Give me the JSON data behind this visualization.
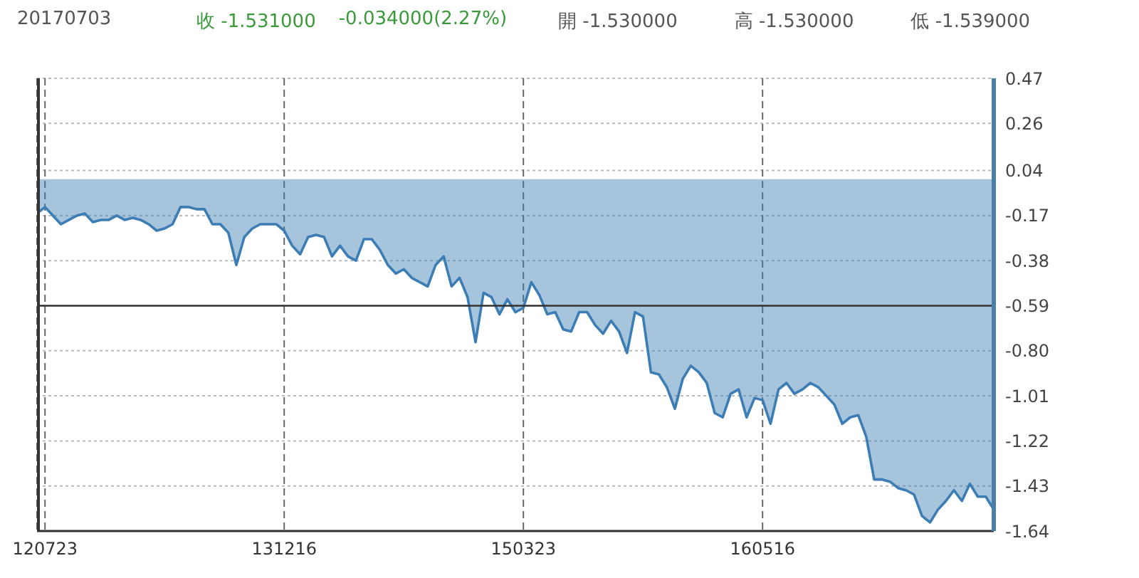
{
  "chart_data": {
    "type": "area",
    "title": "20170703",
    "annotations": [
      "收 -1.531000",
      "-0.034000(2.27%)",
      "開 -1.530000",
      "高 -1.530000",
      "低 -1.539000"
    ],
    "categories": [
      null,
      "120723",
      null,
      null,
      null,
      null,
      null,
      null,
      null,
      null,
      null,
      null,
      null,
      null,
      null,
      null,
      null,
      null,
      null,
      null,
      null,
      null,
      null,
      null,
      null,
      null,
      null,
      null,
      null,
      null,
      null,
      "131216",
      null,
      null,
      null,
      null,
      null,
      null,
      null,
      null,
      null,
      null,
      null,
      null,
      null,
      null,
      null,
      null,
      null,
      null,
      null,
      null,
      null,
      null,
      null,
      null,
      null,
      null,
      null,
      null,
      null,
      "150323",
      null,
      null,
      null,
      null,
      null,
      null,
      null,
      null,
      null,
      null,
      null,
      null,
      null,
      null,
      null,
      null,
      null,
      null,
      null,
      null,
      null,
      null,
      null,
      null,
      null,
      null,
      null,
      null,
      null,
      "160516",
      null,
      null,
      null,
      null,
      null,
      null,
      null,
      null,
      null,
      null,
      null,
      null,
      null,
      null,
      null,
      null,
      null,
      null,
      null,
      null,
      null,
      null,
      null,
      null,
      null,
      null,
      null,
      null,
      null
    ],
    "series": [
      {
        "color": "#3b7db4",
        "values": [
          -0.16,
          -0.13,
          -0.17,
          -0.21,
          -0.19,
          -0.17,
          -0.16,
          -0.2,
          -0.19,
          -0.19,
          -0.17,
          -0.19,
          -0.18,
          -0.19,
          -0.21,
          -0.24,
          -0.23,
          -0.21,
          -0.13,
          -0.13,
          -0.14,
          -0.14,
          -0.21,
          -0.21,
          -0.25,
          -0.4,
          -0.27,
          -0.23,
          -0.21,
          -0.21,
          -0.21,
          -0.24,
          -0.31,
          -0.35,
          -0.27,
          -0.26,
          -0.27,
          -0.36,
          -0.31,
          -0.36,
          -0.38,
          -0.28,
          -0.28,
          -0.33,
          -0.4,
          -0.44,
          -0.42,
          -0.46,
          -0.48,
          -0.5,
          -0.4,
          -0.36,
          -0.5,
          -0.46,
          -0.55,
          -0.76,
          -0.53,
          -0.55,
          -0.63,
          -0.56,
          -0.62,
          -0.6,
          -0.48,
          -0.54,
          -0.63,
          -0.62,
          -0.7,
          -0.71,
          -0.62,
          -0.62,
          -0.68,
          -0.72,
          -0.66,
          -0.71,
          -0.81,
          -0.62,
          -0.64,
          -0.9,
          -0.91,
          -0.97,
          -1.07,
          -0.93,
          -0.87,
          -0.9,
          -0.95,
          -1.09,
          -1.11,
          -1.0,
          -0.98,
          -1.11,
          -1.02,
          -1.03,
          -1.14,
          -0.98,
          -0.95,
          -1.0,
          -0.98,
          -0.95,
          -0.97,
          -1.01,
          -1.05,
          -1.14,
          -1.11,
          -1.1,
          -1.2,
          -1.4,
          -1.4,
          -1.41,
          -1.44,
          -1.45,
          -1.47,
          -1.57,
          -1.6,
          -1.54,
          -1.5,
          -1.45,
          -1.5,
          -1.42,
          -1.48,
          -1.48,
          -1.54
        ]
      }
    ],
    "ylim": [
      -1.64,
      0.47
    ],
    "yticks": [
      0.47,
      0.26,
      0.04,
      -0.17,
      -0.38,
      -0.59,
      {
        "value": -0.8,
        "label": "-0.80"
      },
      -1.01,
      -1.22,
      -1.43,
      -1.64
    ],
    "grid": true,
    "ref_lines": [
      {
        "axis": "y",
        "value": -0.59,
        "color": "#333333"
      }
    ]
  }
}
